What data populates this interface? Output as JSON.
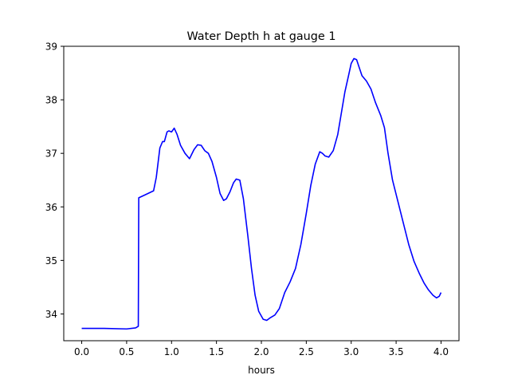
{
  "chart_data": {
    "type": "line",
    "title": "Water Depth h at gauge 1",
    "xlabel": "hours",
    "ylabel": "",
    "xlim": [
      -0.2,
      4.2
    ],
    "ylim": [
      33.5,
      39.0
    ],
    "xticks": [
      0.0,
      0.5,
      1.0,
      1.5,
      2.0,
      2.5,
      3.0,
      3.5,
      4.0
    ],
    "xtick_labels": [
      "0.0",
      "0.5",
      "1.0",
      "1.5",
      "2.0",
      "2.5",
      "3.0",
      "3.5",
      "4.0"
    ],
    "yticks": [
      34,
      35,
      36,
      37,
      38,
      39
    ],
    "ytick_labels": [
      "34",
      "35",
      "36",
      "37",
      "38",
      "39"
    ],
    "grid": false,
    "series": [
      {
        "color": "#0000ff",
        "x": [
          0.0,
          0.25,
          0.5,
          0.6,
          0.63,
          0.635,
          0.7,
          0.8,
          0.83,
          0.87,
          0.9,
          0.92,
          0.95,
          0.97,
          1.0,
          1.03,
          1.06,
          1.1,
          1.15,
          1.2,
          1.25,
          1.29,
          1.33,
          1.37,
          1.41,
          1.45,
          1.5,
          1.54,
          1.58,
          1.61,
          1.65,
          1.69,
          1.72,
          1.76,
          1.8,
          1.85,
          1.89,
          1.93,
          1.97,
          2.02,
          2.06,
          2.1,
          2.15,
          2.2,
          2.26,
          2.32,
          2.38,
          2.44,
          2.5,
          2.55,
          2.6,
          2.65,
          2.68,
          2.71,
          2.75,
          2.8,
          2.85,
          2.89,
          2.93,
          2.97,
          3.0,
          3.03,
          3.06,
          3.09,
          3.12,
          3.17,
          3.22,
          3.27,
          3.33,
          3.37,
          3.41,
          3.46,
          3.52,
          3.58,
          3.64,
          3.7,
          3.76,
          3.81,
          3.86,
          3.91,
          3.95,
          3.98,
          4.0
        ],
        "y": [
          33.73,
          33.73,
          33.72,
          33.74,
          33.77,
          36.17,
          36.22,
          36.3,
          36.55,
          37.1,
          37.22,
          37.22,
          37.4,
          37.42,
          37.4,
          37.47,
          37.36,
          37.15,
          37.0,
          36.9,
          37.07,
          37.16,
          37.15,
          37.05,
          37.0,
          36.85,
          36.55,
          36.25,
          36.12,
          36.15,
          36.28,
          36.45,
          36.52,
          36.5,
          36.15,
          35.45,
          34.85,
          34.35,
          34.05,
          33.9,
          33.88,
          33.93,
          33.98,
          34.1,
          34.4,
          34.6,
          34.85,
          35.3,
          35.88,
          36.4,
          36.8,
          37.03,
          37.0,
          36.95,
          36.93,
          37.05,
          37.35,
          37.75,
          38.15,
          38.45,
          38.68,
          38.77,
          38.75,
          38.6,
          38.45,
          38.35,
          38.2,
          37.95,
          37.7,
          37.48,
          37.0,
          36.5,
          36.1,
          35.7,
          35.3,
          34.98,
          34.75,
          34.58,
          34.45,
          34.35,
          34.3,
          34.33,
          34.4
        ]
      }
    ]
  }
}
